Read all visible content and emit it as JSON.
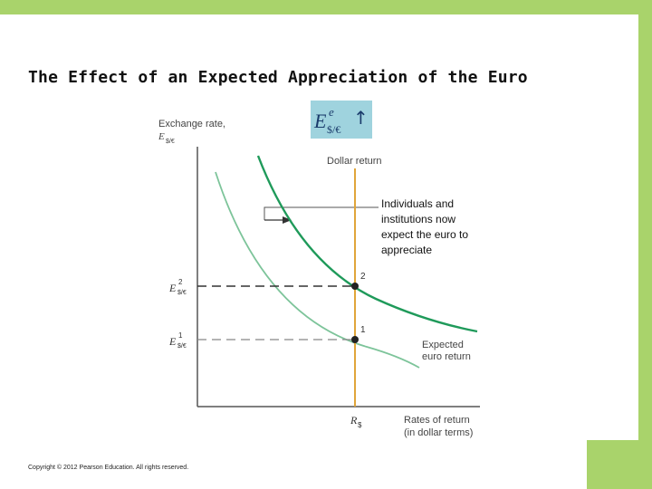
{
  "slide": {
    "title": "The Effect of an Expected Appreciation of the Euro",
    "copyright": "Copyright © 2012 Pearson Education. All rights reserved.",
    "accent_color": "#a9d36b"
  },
  "diagram": {
    "y_axis_label_line1": "Exchange rate,",
    "y_axis_label_line2": "E",
    "y_axis_label_sub": "$/€",
    "x_axis_label_line1": "Rates of return",
    "x_axis_label_line2": "(in dollar terms)",
    "expectation_box": {
      "symbol": "E",
      "superscript": "e",
      "subscript": "$/€",
      "arrow": "↑",
      "color": "#9fd3de"
    },
    "dollar_return_label": "Dollar return",
    "callout_text": [
      "Individuals and",
      "institutions now",
      "expect the euro to",
      "appreciate"
    ],
    "expected_euro_return_label": [
      "Expected",
      "euro return"
    ],
    "point_1_label": "1",
    "point_2_label": "2",
    "e1_label": {
      "symbol": "E",
      "superscript": "1",
      "subscript": "$/€"
    },
    "e2_label": {
      "symbol": "E",
      "superscript": "2",
      "subscript": "$/€"
    },
    "r_label": {
      "symbol": "R",
      "subscript": "$"
    },
    "colors": {
      "new_curve": "#1f9a5a",
      "old_curve": "#7dc49a",
      "dollar_return": "#e0a53a"
    }
  }
}
